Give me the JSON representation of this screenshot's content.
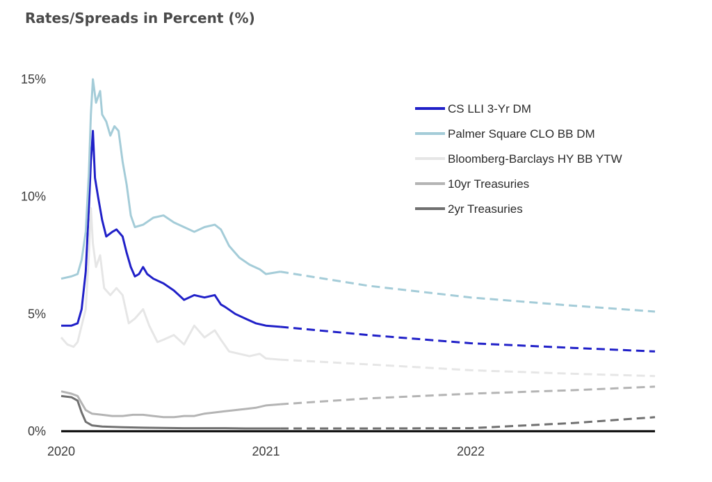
{
  "title": "Rates/Spreads in Percent (%)",
  "chart_data": {
    "type": "line",
    "title": "Rates/Spreads in Percent (%)",
    "xlabel": "",
    "ylabel": "",
    "x_ticks": [
      "2020",
      "2021",
      "2022"
    ],
    "y_ticks": [
      "0%",
      "5%",
      "10%",
      "15%"
    ],
    "xlim": [
      2020.0,
      2022.9
    ],
    "ylim": [
      0,
      15
    ],
    "legend_position": "top-right",
    "series": [
      {
        "name": "CS LLI 3-Yr DM",
        "color": "#2020c8",
        "actual": [
          [
            2020.0,
            4.5
          ],
          [
            2020.05,
            4.5
          ],
          [
            2020.08,
            4.6
          ],
          [
            2020.1,
            5.2
          ],
          [
            2020.12,
            6.8
          ],
          [
            2020.135,
            9.5
          ],
          [
            2020.145,
            11.5
          ],
          [
            2020.155,
            12.8
          ],
          [
            2020.165,
            10.8
          ],
          [
            2020.18,
            10.0
          ],
          [
            2020.2,
            9.0
          ],
          [
            2020.22,
            8.3
          ],
          [
            2020.25,
            8.5
          ],
          [
            2020.27,
            8.6
          ],
          [
            2020.3,
            8.3
          ],
          [
            2020.32,
            7.6
          ],
          [
            2020.34,
            7.0
          ],
          [
            2020.36,
            6.6
          ],
          [
            2020.38,
            6.7
          ],
          [
            2020.4,
            7.0
          ],
          [
            2020.42,
            6.7
          ],
          [
            2020.45,
            6.5
          ],
          [
            2020.5,
            6.3
          ],
          [
            2020.55,
            6.0
          ],
          [
            2020.6,
            5.6
          ],
          [
            2020.65,
            5.8
          ],
          [
            2020.7,
            5.7
          ],
          [
            2020.75,
            5.8
          ],
          [
            2020.78,
            5.4
          ],
          [
            2020.8,
            5.3
          ],
          [
            2020.85,
            5.0
          ],
          [
            2020.9,
            4.8
          ],
          [
            2020.95,
            4.6
          ],
          [
            2021.0,
            4.5
          ],
          [
            2021.07,
            4.45
          ]
        ],
        "projected": [
          [
            2021.07,
            4.45
          ],
          [
            2021.5,
            4.1
          ],
          [
            2022.0,
            3.75
          ],
          [
            2022.5,
            3.55
          ],
          [
            2022.9,
            3.4
          ]
        ]
      },
      {
        "name": "Palmer Square CLO BB DM",
        "color": "#a4ccd8",
        "actual": [
          [
            2020.0,
            6.5
          ],
          [
            2020.05,
            6.6
          ],
          [
            2020.08,
            6.7
          ],
          [
            2020.1,
            7.3
          ],
          [
            2020.12,
            8.5
          ],
          [
            2020.135,
            11.0
          ],
          [
            2020.145,
            13.5
          ],
          [
            2020.155,
            15.0
          ],
          [
            2020.17,
            14.0
          ],
          [
            2020.19,
            14.5
          ],
          [
            2020.2,
            13.5
          ],
          [
            2020.22,
            13.2
          ],
          [
            2020.24,
            12.6
          ],
          [
            2020.26,
            13.0
          ],
          [
            2020.28,
            12.8
          ],
          [
            2020.3,
            11.5
          ],
          [
            2020.32,
            10.5
          ],
          [
            2020.34,
            9.2
          ],
          [
            2020.36,
            8.7
          ],
          [
            2020.4,
            8.8
          ],
          [
            2020.45,
            9.1
          ],
          [
            2020.5,
            9.2
          ],
          [
            2020.55,
            8.9
          ],
          [
            2020.6,
            8.7
          ],
          [
            2020.65,
            8.5
          ],
          [
            2020.7,
            8.7
          ],
          [
            2020.75,
            8.8
          ],
          [
            2020.78,
            8.6
          ],
          [
            2020.82,
            7.9
          ],
          [
            2020.87,
            7.4
          ],
          [
            2020.92,
            7.1
          ],
          [
            2020.97,
            6.9
          ],
          [
            2021.0,
            6.7
          ],
          [
            2021.07,
            6.8
          ]
        ],
        "projected": [
          [
            2021.07,
            6.8
          ],
          [
            2021.5,
            6.2
          ],
          [
            2022.0,
            5.7
          ],
          [
            2022.5,
            5.35
          ],
          [
            2022.9,
            5.1
          ]
        ]
      },
      {
        "name": "Bloomberg-Barclays  HY BB YTW",
        "color": "#e6e6e6",
        "actual": [
          [
            2020.0,
            4.0
          ],
          [
            2020.03,
            3.7
          ],
          [
            2020.06,
            3.6
          ],
          [
            2020.08,
            3.8
          ],
          [
            2020.1,
            4.5
          ],
          [
            2020.12,
            5.2
          ],
          [
            2020.135,
            7.5
          ],
          [
            2020.145,
            9.5
          ],
          [
            2020.155,
            8.0
          ],
          [
            2020.17,
            7.0
          ],
          [
            2020.19,
            7.5
          ],
          [
            2020.21,
            6.1
          ],
          [
            2020.24,
            5.8
          ],
          [
            2020.27,
            6.1
          ],
          [
            2020.3,
            5.8
          ],
          [
            2020.33,
            4.6
          ],
          [
            2020.36,
            4.8
          ],
          [
            2020.4,
            5.2
          ],
          [
            2020.43,
            4.5
          ],
          [
            2020.47,
            3.8
          ],
          [
            2020.5,
            3.9
          ],
          [
            2020.55,
            4.1
          ],
          [
            2020.6,
            3.7
          ],
          [
            2020.65,
            4.5
          ],
          [
            2020.7,
            4.0
          ],
          [
            2020.75,
            4.3
          ],
          [
            2020.78,
            3.9
          ],
          [
            2020.82,
            3.4
          ],
          [
            2020.87,
            3.3
          ],
          [
            2020.92,
            3.2
          ],
          [
            2020.97,
            3.3
          ],
          [
            2021.0,
            3.1
          ],
          [
            2021.07,
            3.05
          ]
        ],
        "projected": [
          [
            2021.07,
            3.05
          ],
          [
            2021.5,
            2.85
          ],
          [
            2022.0,
            2.6
          ],
          [
            2022.5,
            2.45
          ],
          [
            2022.9,
            2.35
          ]
        ]
      },
      {
        "name": "10yr Treasuries",
        "color": "#b4b4b4",
        "actual": [
          [
            2020.0,
            1.7
          ],
          [
            2020.05,
            1.6
          ],
          [
            2020.08,
            1.5
          ],
          [
            2020.1,
            1.2
          ],
          [
            2020.12,
            0.9
          ],
          [
            2020.15,
            0.75
          ],
          [
            2020.2,
            0.7
          ],
          [
            2020.25,
            0.65
          ],
          [
            2020.3,
            0.65
          ],
          [
            2020.35,
            0.7
          ],
          [
            2020.4,
            0.7
          ],
          [
            2020.45,
            0.65
          ],
          [
            2020.5,
            0.6
          ],
          [
            2020.55,
            0.6
          ],
          [
            2020.6,
            0.65
          ],
          [
            2020.65,
            0.65
          ],
          [
            2020.7,
            0.75
          ],
          [
            2020.75,
            0.8
          ],
          [
            2020.8,
            0.85
          ],
          [
            2020.85,
            0.9
          ],
          [
            2020.9,
            0.95
          ],
          [
            2020.95,
            1.0
          ],
          [
            2021.0,
            1.1
          ],
          [
            2021.07,
            1.15
          ]
        ],
        "projected": [
          [
            2021.07,
            1.15
          ],
          [
            2021.5,
            1.4
          ],
          [
            2022.0,
            1.6
          ],
          [
            2022.5,
            1.75
          ],
          [
            2022.9,
            1.9
          ]
        ]
      },
      {
        "name": "2yr Treasuries",
        "color": "#707070",
        "actual": [
          [
            2020.0,
            1.5
          ],
          [
            2020.05,
            1.45
          ],
          [
            2020.08,
            1.3
          ],
          [
            2020.1,
            0.8
          ],
          [
            2020.12,
            0.4
          ],
          [
            2020.15,
            0.25
          ],
          [
            2020.2,
            0.2
          ],
          [
            2020.3,
            0.17
          ],
          [
            2020.4,
            0.15
          ],
          [
            2020.5,
            0.14
          ],
          [
            2020.6,
            0.13
          ],
          [
            2020.7,
            0.13
          ],
          [
            2020.8,
            0.13
          ],
          [
            2020.9,
            0.12
          ],
          [
            2021.0,
            0.12
          ],
          [
            2021.07,
            0.12
          ]
        ],
        "projected": [
          [
            2021.07,
            0.12
          ],
          [
            2021.5,
            0.12
          ],
          [
            2022.0,
            0.13
          ],
          [
            2022.5,
            0.35
          ],
          [
            2022.9,
            0.6
          ]
        ]
      }
    ]
  }
}
